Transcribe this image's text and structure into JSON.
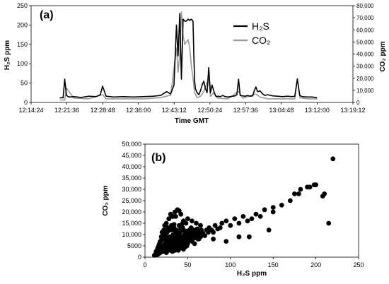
{
  "chart_data": [
    {
      "type": "line",
      "panel_label": "(a)",
      "xlabel": "Time GMT",
      "ylabel_left": "H₂S ppm",
      "ylabel_right": "CO₂ ppm",
      "x_ticks": [
        "12:14:24",
        "12:21:36",
        "12:28:48",
        "12:36:00",
        "12:43:12",
        "12:50:24",
        "12:57:36",
        "13:04:48",
        "13:12:00",
        "13:19:12"
      ],
      "y_left_ticks": [
        0,
        50,
        100,
        150,
        200,
        250
      ],
      "y_left_lim": [
        0,
        250
      ],
      "y_right_ticks": [
        "0",
        "10,000",
        "20,000",
        "30,000",
        "40,000",
        "50,000",
        "60,000",
        "70,000",
        "80,000"
      ],
      "y_right_lim": [
        0,
        80000
      ],
      "legend_position": "top-right",
      "series": [
        {
          "name": "H₂S",
          "axis": "left",
          "color": "#000000",
          "x": [
            "12:20:10",
            "12:20:50",
            "12:21:10",
            "12:21:30",
            "12:22:00",
            "12:23:00",
            "12:24:30",
            "12:26:00",
            "12:27:30",
            "12:28:20",
            "12:28:48",
            "12:29:30",
            "12:31:00",
            "12:33:00",
            "12:35:00",
            "12:37:00",
            "12:39:00",
            "12:40:30",
            "12:41:40",
            "12:42:30",
            "12:43:10",
            "12:43:40",
            "12:44:00",
            "12:44:20",
            "12:44:40",
            "12:45:00",
            "12:45:20",
            "12:45:40",
            "12:46:00",
            "12:46:20",
            "12:46:40",
            "12:47:00",
            "12:47:10",
            "12:47:20",
            "12:47:30",
            "12:47:50",
            "12:48:10",
            "12:48:30",
            "12:48:50",
            "12:49:10",
            "12:49:30",
            "12:49:50",
            "12:50:10",
            "12:50:30",
            "12:50:50",
            "12:51:10",
            "12:51:30",
            "12:51:40",
            "12:52:00",
            "12:52:30",
            "12:53:00",
            "12:53:30",
            "12:54:00",
            "12:54:30",
            "12:55:00",
            "12:55:30",
            "12:55:50",
            "12:56:10",
            "12:56:30",
            "12:57:00",
            "12:57:30",
            "12:58:00",
            "12:58:30",
            "12:59:00",
            "12:59:20",
            "12:59:40",
            "13:00:00",
            "13:00:30",
            "13:01:00",
            "13:01:30",
            "13:02:00",
            "13:03:00",
            "13:04:00",
            "13:05:00",
            "13:06:00",
            "13:07:00",
            "13:07:30",
            "13:08:00",
            "13:08:30",
            "13:09:00",
            "13:10:00",
            "13:11:00",
            "13:12:00"
          ],
          "y": [
            12,
            12,
            60,
            18,
            14,
            15,
            13,
            16,
            15,
            20,
            42,
            16,
            14,
            15,
            14,
            15,
            16,
            18,
            28,
            22,
            45,
            200,
            120,
            230,
            60,
            215,
            210,
            210,
            215,
            212,
            215,
            210,
            120,
            55,
            35,
            25,
            20,
            30,
            45,
            55,
            35,
            25,
            90,
            25,
            45,
            30,
            18,
            15,
            16,
            15,
            18,
            15,
            14,
            15,
            16,
            17,
            20,
            60,
            18,
            17,
            16,
            18,
            16,
            17,
            30,
            40,
            28,
            30,
            22,
            18,
            20,
            17,
            16,
            15,
            16,
            15,
            16,
            60,
            18,
            15,
            14,
            14,
            12
          ]
        },
        {
          "name": "CO₂",
          "axis": "right",
          "color": "#999999",
          "x": [
            "12:20:10",
            "12:21:10",
            "12:21:30",
            "12:23:00",
            "12:26:00",
            "12:28:48",
            "12:29:30",
            "12:33:00",
            "12:37:00",
            "12:40:30",
            "12:42:30",
            "12:43:40",
            "12:44:00",
            "12:44:20",
            "12:44:40",
            "12:45:00",
            "12:45:20",
            "12:45:40",
            "12:46:00",
            "12:46:20",
            "12:46:40",
            "12:47:00",
            "12:47:20",
            "12:47:50",
            "12:48:30",
            "12:49:10",
            "12:50:10",
            "12:50:30",
            "12:51:10",
            "12:52:00",
            "12:54:00",
            "12:56:10",
            "12:57:00",
            "12:59:40",
            "13:00:30",
            "13:02:00",
            "13:05:00",
            "13:07:30",
            "13:08:00",
            "13:08:30",
            "13:10:00",
            "13:12:00"
          ],
          "y": [
            2000,
            2000,
            12000,
            3500,
            3000,
            6500,
            3000,
            3000,
            3000,
            4000,
            6000,
            45000,
            25000,
            40000,
            75000,
            55000,
            48000,
            50000,
            52000,
            45000,
            30000,
            20000,
            8000,
            4000,
            5000,
            9000,
            20000,
            5000,
            8000,
            3500,
            3000,
            9000,
            3500,
            7000,
            4500,
            3000,
            3000,
            3000,
            20000,
            4000,
            3000,
            3000
          ]
        }
      ]
    },
    {
      "type": "scatter",
      "panel_label": "(b)",
      "xlabel": "H₂S ppm",
      "ylabel": "CO₂ ppm",
      "xlim": [
        0,
        250
      ],
      "ylim": [
        0,
        50000
      ],
      "x_ticks": [
        0,
        50,
        100,
        150,
        200,
        250
      ],
      "y_ticks": [
        "0",
        "5000",
        "10,000",
        "15,000",
        "20,000",
        "25,000",
        "30,000",
        "35,000",
        "40,000",
        "45,000",
        "50,000"
      ],
      "color": "#000000",
      "x": [
        11,
        12,
        13,
        13,
        14,
        14,
        15,
        15,
        16,
        16,
        17,
        17,
        18,
        18,
        19,
        19,
        20,
        20,
        21,
        21,
        22,
        22,
        22,
        23,
        23,
        24,
        24,
        25,
        25,
        25,
        26,
        26,
        27,
        27,
        28,
        28,
        28,
        29,
        29,
        30,
        30,
        30,
        31,
        31,
        32,
        32,
        33,
        33,
        33,
        34,
        34,
        35,
        35,
        35,
        36,
        36,
        37,
        37,
        38,
        38,
        39,
        39,
        40,
        40,
        40,
        41,
        41,
        42,
        42,
        43,
        43,
        44,
        44,
        45,
        45,
        45,
        46,
        46,
        47,
        47,
        48,
        48,
        49,
        49,
        50,
        50,
        51,
        52,
        52,
        53,
        54,
        55,
        55,
        56,
        57,
        58,
        58,
        59,
        60,
        61,
        62,
        63,
        64,
        65,
        66,
        68,
        70,
        72,
        74,
        75,
        78,
        80,
        82,
        85,
        88,
        90,
        95,
        100,
        105,
        110,
        115,
        120,
        125,
        130,
        135,
        140,
        150,
        160,
        170,
        180,
        190,
        200,
        210,
        35,
        38,
        40,
        42,
        36,
        55,
        60,
        65,
        28,
        30,
        32,
        45,
        48,
        50,
        15,
        18,
        20,
        22,
        24,
        26,
        24,
        34,
        44,
        54,
        58,
        62,
        150,
        215,
        122,
        80,
        95,
        182,
        193,
        198,
        208,
        220,
        175,
        145,
        110
      ],
      "y": [
        800,
        1200,
        1500,
        2500,
        1000,
        3000,
        2000,
        4000,
        1500,
        5000,
        3000,
        6000,
        2000,
        7000,
        3500,
        9000,
        4000,
        11000,
        2500,
        5000,
        12000,
        3000,
        8000,
        6000,
        14000,
        4000,
        10000,
        2000,
        7000,
        15000,
        5000,
        11000,
        3000,
        8000,
        6000,
        13000,
        17000,
        4000,
        9000,
        3000,
        7000,
        12000,
        5000,
        14000,
        2500,
        8000,
        4500,
        10000,
        18000,
        6000,
        13000,
        3000,
        7500,
        11500,
        5000,
        9000,
        4000,
        12000,
        6500,
        10000,
        3000,
        8000,
        5500,
        9500,
        14000,
        4000,
        11000,
        7000,
        12500,
        5000,
        9000,
        6000,
        13000,
        3500,
        8000,
        12000,
        6000,
        10000,
        4500,
        9000,
        7000,
        11500,
        5000,
        8500,
        6000,
        10500,
        7500,
        9000,
        12000,
        8000,
        11000,
        7000,
        10000,
        9000,
        12000,
        8500,
        6000,
        11000,
        9500,
        12500,
        10000,
        8000,
        11000,
        9000,
        12000,
        10500,
        9500,
        12000,
        11000,
        13000,
        12000,
        11000,
        14000,
        12500,
        13000,
        15000,
        16000,
        14000,
        17000,
        15000,
        18000,
        16000,
        17000,
        19000,
        18000,
        21000,
        22000,
        23000,
        25000,
        28000,
        31000,
        32000,
        28000,
        20000,
        21000,
        20500,
        19000,
        18000,
        16000,
        15000,
        14000,
        17000,
        19000,
        18000,
        16000,
        15000,
        17000,
        4000,
        7000,
        8000,
        9000,
        9500,
        12000,
        14000,
        14500,
        15000,
        13000,
        10000,
        8000,
        20000,
        15000,
        9000,
        8000,
        7000,
        30000,
        31000,
        32000,
        27000,
        43500,
        28000,
        12000,
        9000
      ]
    }
  ]
}
